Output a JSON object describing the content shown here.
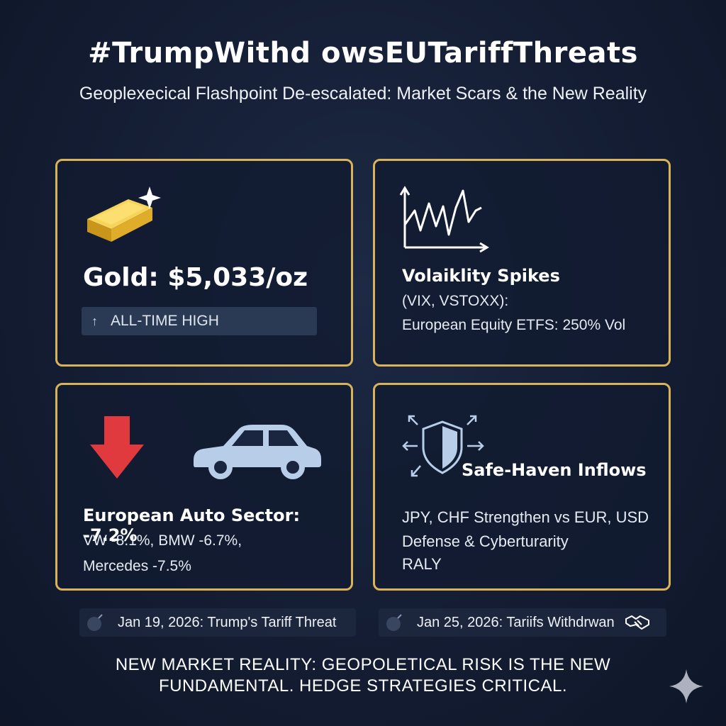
{
  "header": {
    "title": "#TrumpWithd owsEUTariffThreats",
    "subtitle": "Geoplexecical Flashpoint De-escalated: Market Scars & the New Reality"
  },
  "cards": {
    "gold": {
      "icon": "gold-bar-icon",
      "value": "Gold: $5,033/oz",
      "badge": "ALL-TIME HIGH"
    },
    "volatility": {
      "icon": "volatility-chart-icon",
      "title": "Volaiklity Spikes",
      "line1": "(VIX, VSTOXX):",
      "line2": "European Equity ETFS: 250% Vol"
    },
    "auto": {
      "icon_arrow": "down-arrow-icon",
      "icon_car": "car-icon",
      "title": "European Auto Sector: -7.2%",
      "line1": "VW -8.1%, BMW -6.7%,",
      "line2": "Mercedes -7.5%"
    },
    "safe_haven": {
      "icon": "shield-icon",
      "title": "Safe-Haven Inflows",
      "line1": "JPY, CHF Strengthen vs EUR, USD",
      "line2": "Defense & Cyberturarity",
      "line3": "RALY"
    }
  },
  "timeline": {
    "event1": "Jan 19, 2026: Trump's Tariff Threat",
    "event2": "Jan 25, 2026: Tariifs Withdrwan"
  },
  "footer": {
    "line1": "NEW MARKET REALITY: GEOPOLETICAL RISK IS THE NEW",
    "line2": "FUNDAMENTAL. HEDGE STRATEGIES CRITICAL."
  },
  "colors": {
    "background": "#141d33",
    "card_border": "#d9b35a",
    "gold": "#e9b92b",
    "down_arrow": "#e0393e",
    "icon_light_blue": "#b7cde8"
  }
}
